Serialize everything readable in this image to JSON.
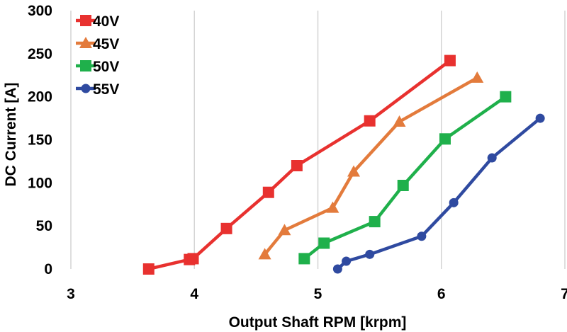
{
  "chart_data": {
    "type": "line",
    "title": "",
    "xlabel": "Output Shaft RPM [krpm]",
    "ylabel": "DC Current [A]",
    "xlim": [
      3,
      7
    ],
    "ylim": [
      0,
      300
    ],
    "xticks": [
      "3",
      "4",
      "5",
      "6",
      "7"
    ],
    "yticks": [
      "0",
      "50",
      "100",
      "150",
      "200",
      "250",
      "300"
    ],
    "grid": "vertical",
    "legend_position": "top-left",
    "series": [
      {
        "name": "40V",
        "color": "#e8312f",
        "marker": "square",
        "x": [
          3.63,
          3.96,
          3.99,
          4.26,
          4.6,
          4.83,
          5.42,
          6.07
        ],
        "y": [
          0,
          11,
          12,
          47,
          89,
          120,
          172,
          242
        ]
      },
      {
        "name": "45V",
        "color": "#e37b3c",
        "marker": "triangle",
        "x": [
          4.57,
          4.73,
          5.12,
          5.29,
          5.66,
          6.29
        ],
        "y": [
          17,
          45,
          71,
          113,
          171,
          222
        ]
      },
      {
        "name": "50V",
        "color": "#1fb04b",
        "marker": "square",
        "x": [
          4.89,
          5.05,
          5.46,
          5.69,
          6.03,
          6.52
        ],
        "y": [
          12,
          30,
          55,
          97,
          151,
          200
        ]
      },
      {
        "name": "55V",
        "color": "#2f4aa0",
        "marker": "circle",
        "x": [
          5.16,
          5.23,
          5.42,
          5.84,
          6.1,
          6.41,
          6.8
        ],
        "y": [
          0,
          9,
          17,
          38,
          77,
          129,
          175
        ]
      }
    ]
  }
}
